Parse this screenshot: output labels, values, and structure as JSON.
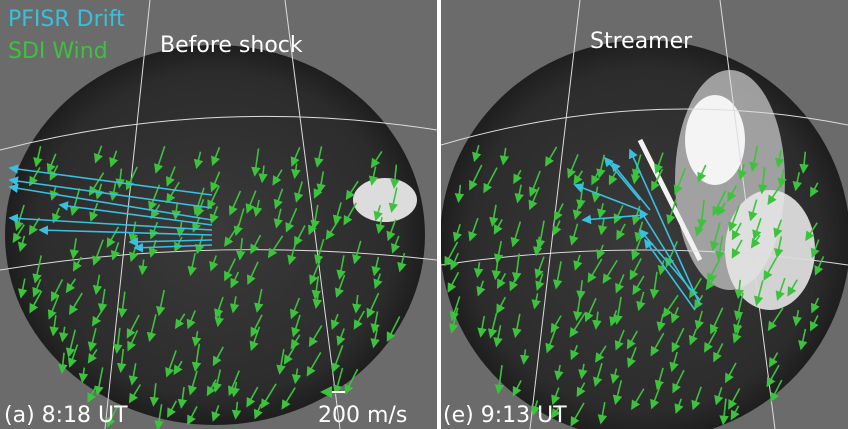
{
  "legend": {
    "drift": "PFISR Drift",
    "wind": "SDI Wind"
  },
  "panels": [
    {
      "title": "Before shock",
      "label": "(a) 8:18 UT",
      "scale": "200 m/s"
    },
    {
      "title": "Streamer",
      "label": "(e) 9:13 UT"
    }
  ]
}
